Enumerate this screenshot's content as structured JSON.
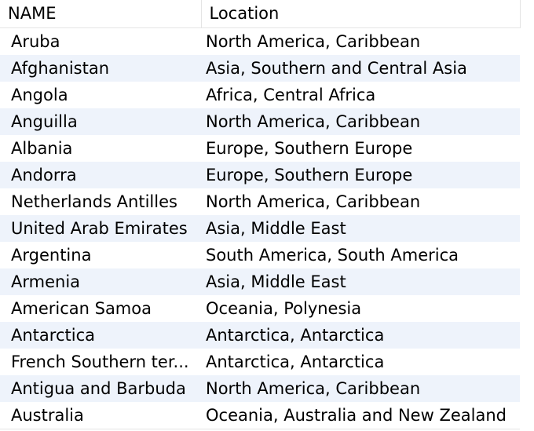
{
  "columns": {
    "name": "NAME",
    "location": "Location"
  },
  "rows": [
    {
      "name": "Aruba",
      "location": "North America, Caribbean"
    },
    {
      "name": "Afghanistan",
      "location": "Asia, Southern and Central Asia"
    },
    {
      "name": "Angola",
      "location": "Africa, Central Africa"
    },
    {
      "name": "Anguilla",
      "location": "North America, Caribbean"
    },
    {
      "name": "Albania",
      "location": "Europe, Southern Europe"
    },
    {
      "name": "Andorra",
      "location": "Europe, Southern Europe"
    },
    {
      "name": "Netherlands Antilles",
      "location": "North America, Caribbean"
    },
    {
      "name": "United Arab Emirates",
      "location": "Asia, Middle East"
    },
    {
      "name": "Argentina",
      "location": "South America, South America"
    },
    {
      "name": "Armenia",
      "location": "Asia, Middle East"
    },
    {
      "name": "American Samoa",
      "location": "Oceania, Polynesia"
    },
    {
      "name": "Antarctica",
      "location": "Antarctica, Antarctica"
    },
    {
      "name": "French Southern ter...",
      "location": "Antarctica, Antarctica"
    },
    {
      "name": "Antigua and Barbuda",
      "location": "North America, Caribbean"
    },
    {
      "name": "Australia",
      "location": "Oceania, Australia and New Zealand"
    }
  ]
}
